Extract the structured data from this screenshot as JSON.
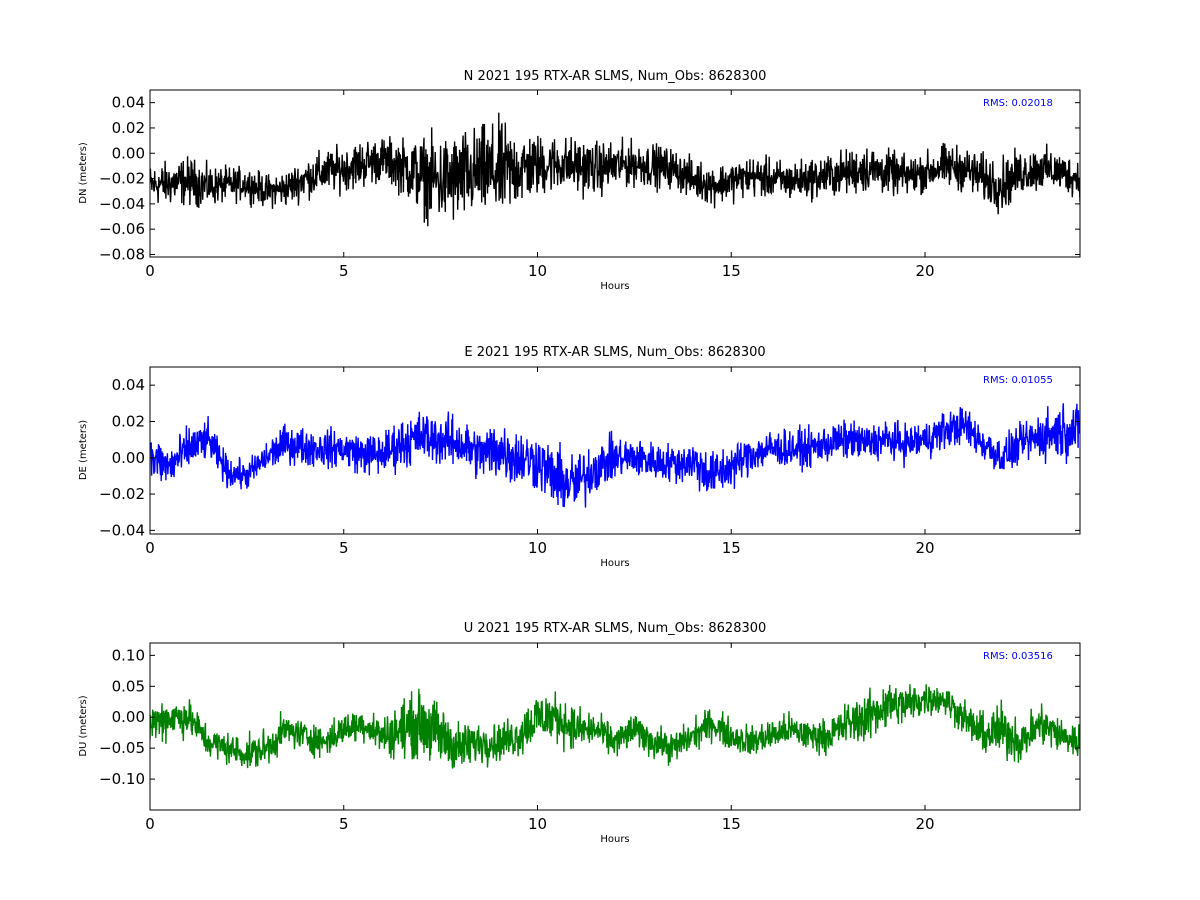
{
  "chart_data": [
    {
      "type": "line",
      "component": "N",
      "title": "N 2021 195 RTX-AR  SLMS, Num_Obs: 8628300",
      "xlabel": "Hours",
      "ylabel": "DN (meters)",
      "xlim": [
        0,
        24
      ],
      "ylim": [
        -0.082,
        0.05
      ],
      "xticks": [
        0,
        5,
        10,
        15,
        20
      ],
      "yticks": [
        0.04,
        0.02,
        0.0,
        -0.02,
        -0.04,
        -0.06,
        -0.08
      ],
      "ytick_labels": [
        "0.04",
        "0.02",
        "0.00",
        "−0.02",
        "−0.04",
        "−0.06",
        "−0.08"
      ],
      "color": "#000000",
      "annotation": "RMS:  0.02018",
      "annotation_color": "#0000ff",
      "series": [
        {
          "x": [
            0,
            0.5,
            1,
            1.5,
            2,
            2.5,
            3,
            3.5,
            4,
            4.5,
            5,
            5.5,
            6,
            6.5,
            7,
            7.5,
            8,
            8.5,
            9,
            9.5,
            10,
            10.5,
            11,
            11.5,
            12,
            12.5,
            13,
            13.5,
            14,
            14.5,
            15,
            15.5,
            16,
            16.5,
            17,
            17.5,
            18,
            18.5,
            19,
            19.5,
            20,
            20.5,
            21,
            21.5,
            22,
            22.5,
            23,
            23.5,
            24
          ],
          "y": [
            -0.025,
            -0.024,
            -0.022,
            -0.026,
            -0.025,
            -0.024,
            -0.03,
            -0.028,
            -0.02,
            -0.015,
            -0.012,
            -0.008,
            -0.005,
            -0.01,
            -0.018,
            -0.022,
            -0.02,
            -0.015,
            -0.015,
            -0.012,
            -0.01,
            -0.008,
            -0.01,
            -0.012,
            -0.01,
            -0.008,
            -0.01,
            -0.012,
            -0.02,
            -0.025,
            -0.022,
            -0.018,
            -0.02,
            -0.022,
            -0.02,
            -0.018,
            -0.015,
            -0.012,
            -0.015,
            -0.018,
            -0.015,
            -0.01,
            -0.012,
            -0.02,
            -0.025,
            -0.015,
            -0.012,
            -0.015,
            -0.02
          ],
          "envelope": [
            0.018,
            0.02,
            0.022,
            0.018,
            0.016,
            0.015,
            0.015,
            0.016,
            0.018,
            0.02,
            0.02,
            0.022,
            0.02,
            0.025,
            0.035,
            0.04,
            0.042,
            0.04,
            0.045,
            0.035,
            0.028,
            0.025,
            0.025,
            0.024,
            0.022,
            0.02,
            0.02,
            0.018,
            0.018,
            0.018,
            0.018,
            0.018,
            0.018,
            0.018,
            0.018,
            0.02,
            0.02,
            0.022,
            0.02,
            0.018,
            0.018,
            0.02,
            0.02,
            0.022,
            0.025,
            0.02,
            0.02,
            0.018,
            0.018
          ]
        }
      ]
    },
    {
      "type": "line",
      "component": "E",
      "title": "E 2021 195 RTX-AR  SLMS, Num_Obs: 8628300",
      "xlabel": "Hours",
      "ylabel": "DE (meters)",
      "xlim": [
        0,
        24
      ],
      "ylim": [
        -0.042,
        0.05
      ],
      "xticks": [
        0,
        5,
        10,
        15,
        20
      ],
      "yticks": [
        0.04,
        0.02,
        0.0,
        -0.02,
        -0.04
      ],
      "ytick_labels": [
        "0.04",
        "0.02",
        "0.00",
        "−0.02",
        "−0.04"
      ],
      "color": "#0000ff",
      "annotation": "RMS:  0.01055",
      "annotation_color": "#0000ff",
      "series": [
        {
          "x": [
            0,
            0.5,
            1,
            1.5,
            2,
            2.5,
            3,
            3.5,
            4,
            4.5,
            5,
            5.5,
            6,
            6.5,
            7,
            7.5,
            8,
            8.5,
            9,
            9.5,
            10,
            10.5,
            11,
            11.5,
            12,
            12.5,
            13,
            13.5,
            14,
            14.5,
            15,
            15.5,
            16,
            16.5,
            17,
            17.5,
            18,
            18.5,
            19,
            19.5,
            20,
            20.5,
            21,
            21.5,
            22,
            22.5,
            23,
            23.5,
            24
          ],
          "y": [
            0.0,
            -0.005,
            0.005,
            0.01,
            -0.008,
            -0.01,
            0.0,
            0.008,
            0.006,
            0.005,
            0.005,
            0.002,
            0.002,
            0.008,
            0.012,
            0.01,
            0.008,
            0.002,
            0.005,
            0.0,
            -0.002,
            -0.012,
            -0.015,
            -0.005,
            0.0,
            0.0,
            -0.002,
            -0.003,
            -0.002,
            -0.01,
            -0.005,
            0.002,
            0.005,
            0.005,
            0.005,
            0.008,
            0.01,
            0.008,
            0.01,
            0.008,
            0.01,
            0.015,
            0.018,
            0.008,
            0.0,
            0.008,
            0.012,
            0.015,
            0.015
          ],
          "envelope": [
            0.015,
            0.014,
            0.014,
            0.012,
            0.01,
            0.009,
            0.01,
            0.012,
            0.012,
            0.012,
            0.012,
            0.013,
            0.014,
            0.016,
            0.016,
            0.016,
            0.016,
            0.016,
            0.02,
            0.018,
            0.018,
            0.02,
            0.02,
            0.016,
            0.014,
            0.012,
            0.012,
            0.012,
            0.014,
            0.016,
            0.014,
            0.012,
            0.012,
            0.012,
            0.012,
            0.012,
            0.012,
            0.012,
            0.012,
            0.012,
            0.012,
            0.012,
            0.012,
            0.012,
            0.012,
            0.012,
            0.016,
            0.018,
            0.016
          ]
        }
      ]
    },
    {
      "type": "line",
      "component": "U",
      "title": "U 2021 195 RTX-AR  SLMS, Num_Obs: 8628300",
      "xlabel": "Hours",
      "ylabel": "DU (meters)",
      "xlim": [
        0,
        24
      ],
      "ylim": [
        -0.15,
        0.12
      ],
      "xticks": [
        0,
        5,
        10,
        15,
        20
      ],
      "yticks": [
        0.1,
        0.05,
        0.0,
        -0.05,
        -0.1
      ],
      "ytick_labels": [
        "0.10",
        "0.05",
        "0.00",
        "−0.05",
        "−0.10"
      ],
      "color": "#008000",
      "annotation": "RMS:  0.03516",
      "annotation_color": "#0000ff",
      "series": [
        {
          "x": [
            0,
            0.5,
            1,
            1.5,
            2,
            2.5,
            3,
            3.5,
            4,
            4.5,
            5,
            5.5,
            6,
            6.5,
            7,
            7.5,
            8,
            8.5,
            9,
            9.5,
            10,
            10.5,
            11,
            11.5,
            12,
            12.5,
            13,
            13.5,
            14,
            14.5,
            15,
            15.5,
            16,
            16.5,
            17,
            17.5,
            18,
            18.5,
            19,
            19.5,
            20,
            20.5,
            21,
            21.5,
            22,
            22.5,
            23,
            23.5,
            24
          ],
          "y": [
            -0.01,
            0.0,
            0.0,
            -0.04,
            -0.05,
            -0.06,
            -0.05,
            -0.02,
            -0.03,
            -0.04,
            -0.02,
            -0.01,
            -0.03,
            -0.02,
            -0.01,
            -0.03,
            -0.05,
            -0.04,
            -0.04,
            -0.03,
            0.0,
            0.0,
            -0.02,
            -0.02,
            -0.04,
            -0.02,
            -0.04,
            -0.05,
            -0.03,
            -0.01,
            -0.03,
            -0.04,
            -0.03,
            -0.02,
            -0.03,
            -0.03,
            -0.01,
            0.0,
            0.02,
            0.02,
            0.03,
            0.03,
            0.0,
            -0.03,
            -0.02,
            -0.04,
            -0.01,
            -0.03,
            -0.04
          ],
          "envelope": [
            0.04,
            0.04,
            0.035,
            0.03,
            0.03,
            0.03,
            0.035,
            0.03,
            0.03,
            0.03,
            0.03,
            0.03,
            0.035,
            0.055,
            0.06,
            0.06,
            0.045,
            0.04,
            0.035,
            0.04,
            0.05,
            0.045,
            0.04,
            0.03,
            0.03,
            0.03,
            0.03,
            0.03,
            0.03,
            0.03,
            0.03,
            0.03,
            0.03,
            0.03,
            0.03,
            0.03,
            0.04,
            0.045,
            0.045,
            0.04,
            0.03,
            0.03,
            0.03,
            0.04,
            0.05,
            0.04,
            0.04,
            0.035,
            0.035
          ]
        }
      ]
    }
  ]
}
